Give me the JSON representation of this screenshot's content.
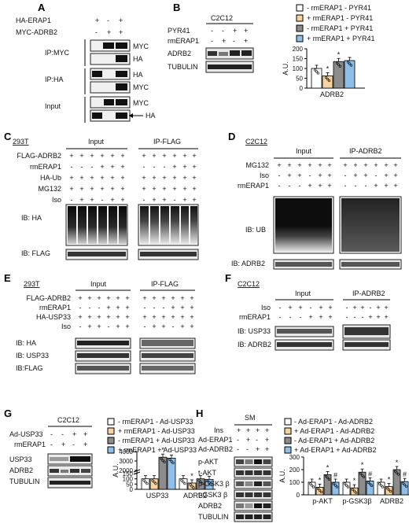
{
  "panels": {
    "A": {
      "letter": "A",
      "rows": [
        {
          "label": "HA-ERAP1",
          "signs": [
            "+",
            "-",
            "+"
          ]
        },
        {
          "label": "MYC-ADRB2",
          "signs": [
            "-",
            "+",
            "+"
          ]
        }
      ],
      "ip_myc": "IP:MYC",
      "ip_ha": "IP:HA",
      "input": "Input",
      "blots": [
        "MYC",
        "HA",
        "HA",
        "MYC",
        "MYC",
        "HA"
      ]
    },
    "B": {
      "letter": "B",
      "cell": "C2C12",
      "rows": [
        {
          "label": "PYR41",
          "signs": [
            "-",
            "-",
            "+",
            "+"
          ]
        },
        {
          "label": "rmERAP1",
          "signs": [
            "-",
            "+",
            "-",
            "+"
          ]
        }
      ],
      "blots": [
        "ADRB2",
        "TUBULIN"
      ],
      "legend": [
        "-  rmERAP1  -  PYR41",
        "+  rmERAP1  -  PYR41",
        "-  rmERAP1  +  PYR41",
        "+  rmERAP1  +  PYR41"
      ],
      "ylabel": "A.U.",
      "yticks": [
        "0",
        "50",
        "100",
        "150",
        "200"
      ]
    },
    "C": {
      "letter": "C",
      "cell": "293T",
      "input": "Input",
      "ip": "IP-FLAG",
      "rows": [
        {
          "label": "FLAG-ADRB2",
          "signs": [
            "+",
            "+",
            "+",
            "+",
            "+",
            "+"
          ]
        },
        {
          "label": "rmERAP1",
          "signs": [
            "-",
            "-",
            "-",
            "+",
            "+",
            "+"
          ]
        },
        {
          "label": "HA-Ub",
          "signs": [
            "+",
            "+",
            "+",
            "+",
            "+",
            "+"
          ]
        },
        {
          "label": "MG132",
          "signs": [
            "+",
            "+",
            "+",
            "+",
            "+",
            "+"
          ]
        },
        {
          "label": "Iso",
          "signs": [
            "-",
            "+",
            "+",
            "-",
            "+",
            "+"
          ]
        }
      ],
      "blots": [
        "IB: HA",
        "IB: FLAG"
      ]
    },
    "D": {
      "letter": "D",
      "cell": "C2C12",
      "input": "Input",
      "ip": "IP-ADRB2",
      "rows": [
        {
          "label": "MG132",
          "signs": [
            "+",
            "+",
            "+",
            "+",
            "+",
            "+"
          ]
        },
        {
          "label": "Iso",
          "signs": [
            "-",
            "+",
            "+",
            "-",
            "+",
            "+"
          ]
        },
        {
          "label": "rmERAP1",
          "signs": [
            "-",
            "-",
            "-",
            "+",
            "+",
            "+"
          ]
        }
      ],
      "blots": [
        "IB: UB",
        "IB: ADRB2"
      ]
    },
    "E": {
      "letter": "E",
      "cell": "293T",
      "input": "Input",
      "ip": "IP-FLAG",
      "rows": [
        {
          "label": "FLAG-ADRB2",
          "signs": [
            "+",
            "+",
            "+",
            "+",
            "+",
            "+"
          ]
        },
        {
          "label": "rmERAP1",
          "signs": [
            "-",
            "-",
            "-",
            "+",
            "+",
            "+"
          ]
        },
        {
          "label": "HA-USP33",
          "signs": [
            "+",
            "+",
            "+",
            "+",
            "+",
            "+"
          ]
        },
        {
          "label": "Iso",
          "signs": [
            "-",
            "+",
            "+",
            "-",
            "+",
            "+"
          ]
        }
      ],
      "blots": [
        "IB: HA",
        "IB: USP33",
        "IB:FLAG"
      ]
    },
    "F": {
      "letter": "F",
      "cell": "C2C12",
      "input": "Input",
      "ip": "IP-ADRB2",
      "rows": [
        {
          "label": "Iso",
          "signs": [
            "-",
            "+",
            "+",
            "-",
            "+",
            "+"
          ]
        },
        {
          "label": "rmERAP1",
          "signs": [
            "-",
            "-",
            "-",
            "+",
            "+",
            "+"
          ]
        }
      ],
      "blots": [
        "IB: USP33",
        "IB: ADRB2"
      ]
    },
    "G": {
      "letter": "G",
      "cell": "C2C12",
      "rows": [
        {
          "label": "Ad-USP33",
          "signs": [
            "-",
            "-",
            "+",
            "+"
          ]
        },
        {
          "label": "rmERAP1",
          "signs": [
            "-",
            "+",
            "-",
            "+"
          ]
        }
      ],
      "blots": [
        "USP33",
        "ADRB2",
        "TUBULIN"
      ],
      "legend": [
        "-  rmERAP1  -  Ad-USP33",
        "+  rmERAP1  -  Ad-USP33",
        "-  rmERAP1  +  Ad-USP33",
        "+  rmERAP1  +  Ad-USP33"
      ],
      "ylabel": "A.U.",
      "yticks": [
        "0",
        "50",
        "100",
        "150",
        "2000",
        "3000",
        "4000"
      ]
    },
    "H": {
      "letter": "H",
      "cell": "SM",
      "rows": [
        {
          "label": "Ins",
          "signs": [
            "+",
            "+",
            "+",
            "+"
          ]
        },
        {
          "label": "Ad-ERAP1",
          "signs": [
            "-",
            "+",
            "-",
            "+"
          ]
        },
        {
          "label": "Ad-ADRB2",
          "signs": [
            "-",
            "-",
            "+",
            "+"
          ]
        }
      ],
      "blots": [
        "p-AKT",
        "t-AKT",
        "p-GSK3 β",
        "t-GSK3 β",
        "ADRB2",
        "TUBULIN"
      ],
      "legend": [
        "-  Ad-ERAP1  -  Ad-ADRB2",
        "+  Ad-ERAP1  -  Ad-ADRB2",
        "-  Ad-ERAP1  +  Ad-ADRB2",
        "+  Ad-ERAP1  +  Ad-ADRB2"
      ],
      "ylabel": "A.U.",
      "yticks": [
        "0",
        "100",
        "200",
        "300"
      ]
    }
  },
  "chart_data": [
    {
      "type": "bar",
      "panel": "B",
      "categories": [
        "ADRB2"
      ],
      "series": [
        {
          "name": "- rmERAP1 - PYR41",
          "values": [
            100
          ]
        },
        {
          "name": "+ rmERAP1 - PYR41",
          "values": [
            62
          ]
        },
        {
          "name": "- rmERAP1 + PYR41",
          "values": [
            135
          ]
        },
        {
          "name": "+ rmERAP1 + PYR41",
          "values": [
            140
          ]
        }
      ],
      "annotations": [
        {
          "series": 1,
          "text": "*"
        },
        {
          "series": 2,
          "text": "*"
        }
      ],
      "ylabel": "A.U.",
      "ylim": [
        0,
        200
      ],
      "colors": [
        "#ffffff",
        "#f6d3a0",
        "#8c8c8c",
        "#8fbfe8"
      ]
    },
    {
      "type": "bar",
      "panel": "G",
      "categories": [
        "USP33",
        "ADRB2"
      ],
      "series": [
        {
          "name": "- rmERAP1 - Ad-USP33",
          "values": [
            100,
            100
          ]
        },
        {
          "name": "+ rmERAP1 - Ad-USP33",
          "values": [
            100,
            60
          ]
        },
        {
          "name": "- rmERAP1 + Ad-USP33",
          "values": [
            3400,
            100
          ]
        },
        {
          "name": "+ rmERAP1 + Ad-USP33",
          "values": [
            3300,
            95
          ]
        }
      ],
      "annotations": [
        {
          "category": 0,
          "series": 2,
          "text": "*"
        },
        {
          "category": 1,
          "series": 1,
          "text": "*"
        }
      ],
      "ylabel": "A.U.",
      "axis_break": [
        150,
        2000
      ],
      "ylim": [
        0,
        4000
      ],
      "colors": [
        "#ffffff",
        "#f6d3a0",
        "#8c8c8c",
        "#8fbfe8"
      ]
    },
    {
      "type": "bar",
      "panel": "H",
      "categories": [
        "p-AKT",
        "p-GSK3β",
        "ADRB2"
      ],
      "series": [
        {
          "name": "- Ad-ERAP1 - Ad-ADRB2",
          "values": [
            100,
            100,
            100
          ]
        },
        {
          "name": "+ Ad-ERAP1 - Ad-ADRB2",
          "values": [
            60,
            55,
            65
          ]
        },
        {
          "name": "- Ad-ERAP1 + Ad-ADRB2",
          "values": [
            160,
            180,
            200
          ]
        },
        {
          "name": "+ Ad-ERAP1 + Ad-ADRB2",
          "values": [
            100,
            110,
            105
          ]
        }
      ],
      "annotations": [
        {
          "category": 0,
          "series": 1,
          "text": "*"
        },
        {
          "category": 0,
          "series": 2,
          "text": "*"
        },
        {
          "category": 0,
          "series": 3,
          "text": "#"
        },
        {
          "category": 1,
          "series": 1,
          "text": "*"
        },
        {
          "category": 1,
          "series": 2,
          "text": "*"
        },
        {
          "category": 1,
          "series": 3,
          "text": "#"
        },
        {
          "category": 2,
          "series": 1,
          "text": "*"
        },
        {
          "category": 2,
          "series": 2,
          "text": "*"
        },
        {
          "category": 2,
          "series": 3,
          "text": "#"
        }
      ],
      "ylabel": "A.U.",
      "ylim": [
        0,
        300
      ],
      "colors": [
        "#ffffff",
        "#f6d3a0",
        "#8c8c8c",
        "#8fbfe8"
      ]
    }
  ]
}
